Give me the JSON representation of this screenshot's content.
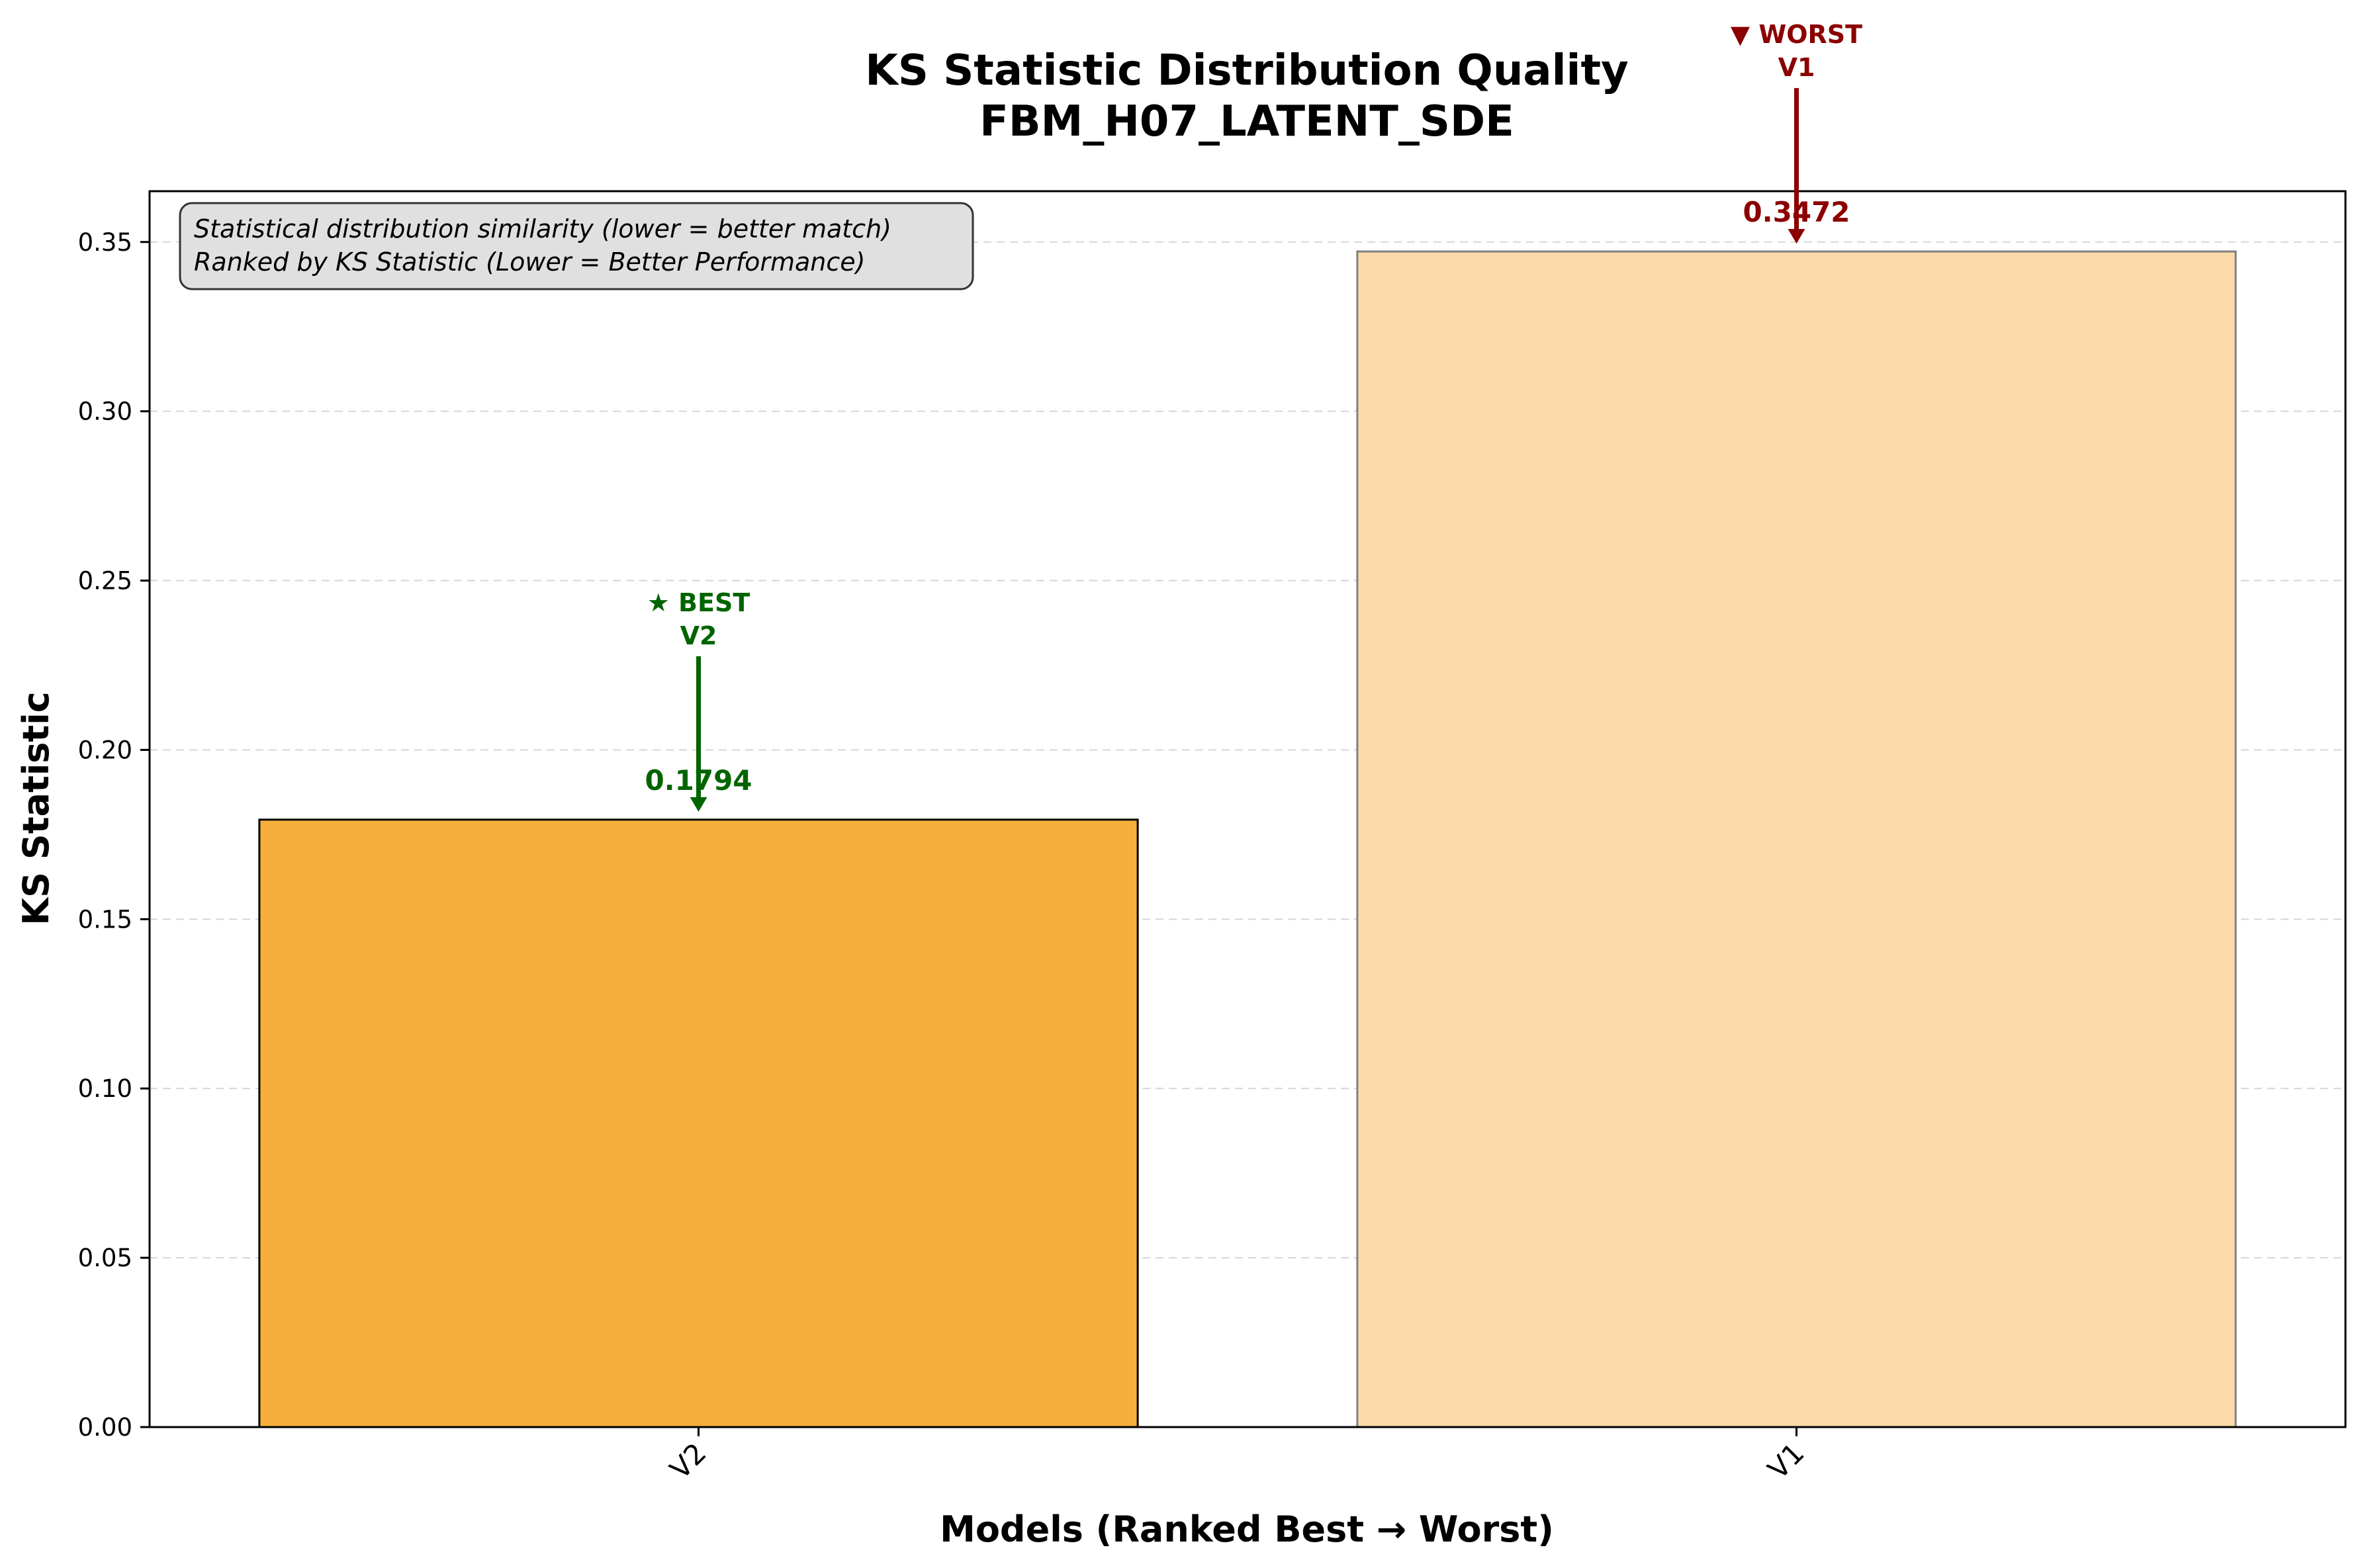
{
  "chart_data": {
    "type": "bar",
    "title": "KS Statistic Distribution Quality",
    "subtitle": "FBM_H07_LATENT_SDE",
    "xlabel": "Models (Ranked Best → Worst)",
    "ylabel": "KS Statistic",
    "categories": [
      "V2",
      "V1"
    ],
    "values": [
      0.1794,
      0.3472
    ],
    "value_labels": [
      "0.1794",
      "0.3472"
    ],
    "bar_colors": [
      "#F5AF3A",
      "#FADAA8"
    ],
    "bar_edge_colors": [
      "#000000",
      "#808080"
    ],
    "ylim": [
      0,
      0.365
    ],
    "yticks": [
      0.0,
      0.05,
      0.1,
      0.15,
      0.2,
      0.25,
      0.3,
      0.35
    ],
    "ytick_labels": [
      "0.00",
      "0.05",
      "0.10",
      "0.15",
      "0.20",
      "0.25",
      "0.30",
      "0.35"
    ],
    "grid": "y-dashed",
    "annotations": [
      {
        "category": "V2",
        "line1": "★ BEST",
        "line2": "V2",
        "color": "#006400"
      },
      {
        "category": "V1",
        "line1": "▼ WORST",
        "line2": "V1",
        "color": "#8B0000"
      }
    ],
    "info_box": {
      "line1": "Statistical distribution similarity (lower = better match)",
      "line2": "Ranked by KS Statistic (Lower = Better Performance)"
    }
  }
}
